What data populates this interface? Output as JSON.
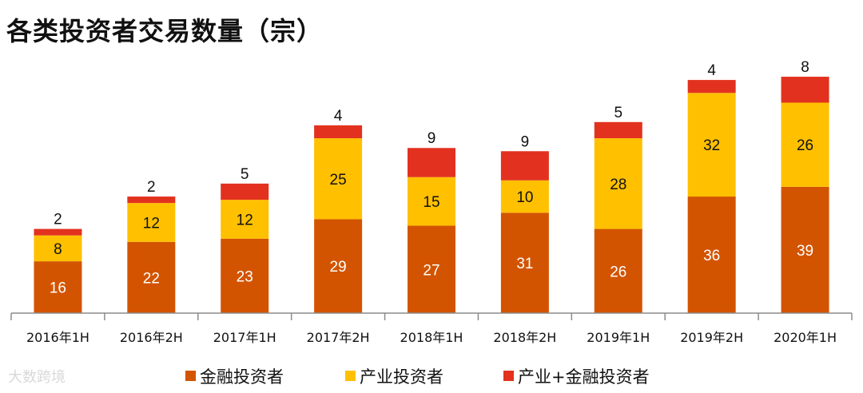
{
  "chart_data": {
    "type": "bar",
    "stacked": true,
    "title": "各类投资者交易数量（宗）",
    "categories": [
      "2016年1H",
      "2016年2H",
      "2017年1H",
      "2017年2H",
      "2018年1H",
      "2018年2H",
      "2019年1H",
      "2019年2H",
      "2020年1H"
    ],
    "series": [
      {
        "name": "金融投资者",
        "color": "#d35400",
        "label_color": "#ffffff",
        "values": [
          16,
          22,
          23,
          29,
          27,
          31,
          26,
          36,
          39
        ]
      },
      {
        "name": "产业投资者",
        "color": "#ffc000",
        "label_color": "#111111",
        "values": [
          8,
          12,
          12,
          25,
          15,
          10,
          28,
          32,
          26
        ]
      },
      {
        "name": "产业+金融投资者",
        "color": "#e2321f",
        "label_color": "#111111",
        "values": [
          2,
          2,
          5,
          4,
          9,
          9,
          5,
          4,
          8
        ]
      }
    ],
    "ylim": [
      0,
      74
    ],
    "grid": false,
    "legend": "bottom"
  },
  "watermark": "大数跨境"
}
